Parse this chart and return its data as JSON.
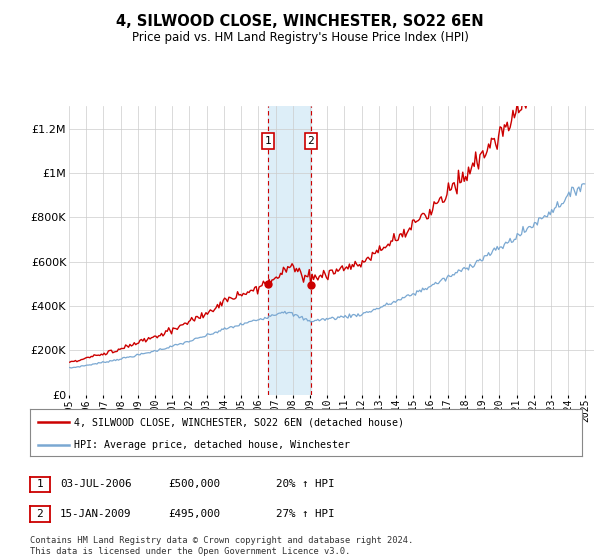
{
  "title": "4, SILWOOD CLOSE, WINCHESTER, SO22 6EN",
  "subtitle": "Price paid vs. HM Land Registry's House Price Index (HPI)",
  "legend_entry1": "4, SILWOOD CLOSE, WINCHESTER, SO22 6EN (detached house)",
  "legend_entry2": "HPI: Average price, detached house, Winchester",
  "transaction1_date": "03-JUL-2006",
  "transaction1_price": "£500,000",
  "transaction1_hpi": "20% ↑ HPI",
  "transaction2_date": "15-JAN-2009",
  "transaction2_price": "£495,000",
  "transaction2_hpi": "27% ↑ HPI",
  "footer": "Contains HM Land Registry data © Crown copyright and database right 2024.\nThis data is licensed under the Open Government Licence v3.0.",
  "price_color": "#cc0000",
  "hpi_color": "#7aa8d2",
  "highlight_color": "#ddeef8",
  "transaction_box_color": "#cc0000",
  "ylim": [
    0,
    1300000
  ],
  "yticks": [
    0,
    200000,
    400000,
    600000,
    800000,
    1000000,
    1200000
  ],
  "background": "#ffffff",
  "t1_year": 2006.54,
  "t2_year": 2009.04,
  "t1_price": 500000,
  "t2_price": 495000,
  "start_year": 1995,
  "end_year": 2025
}
